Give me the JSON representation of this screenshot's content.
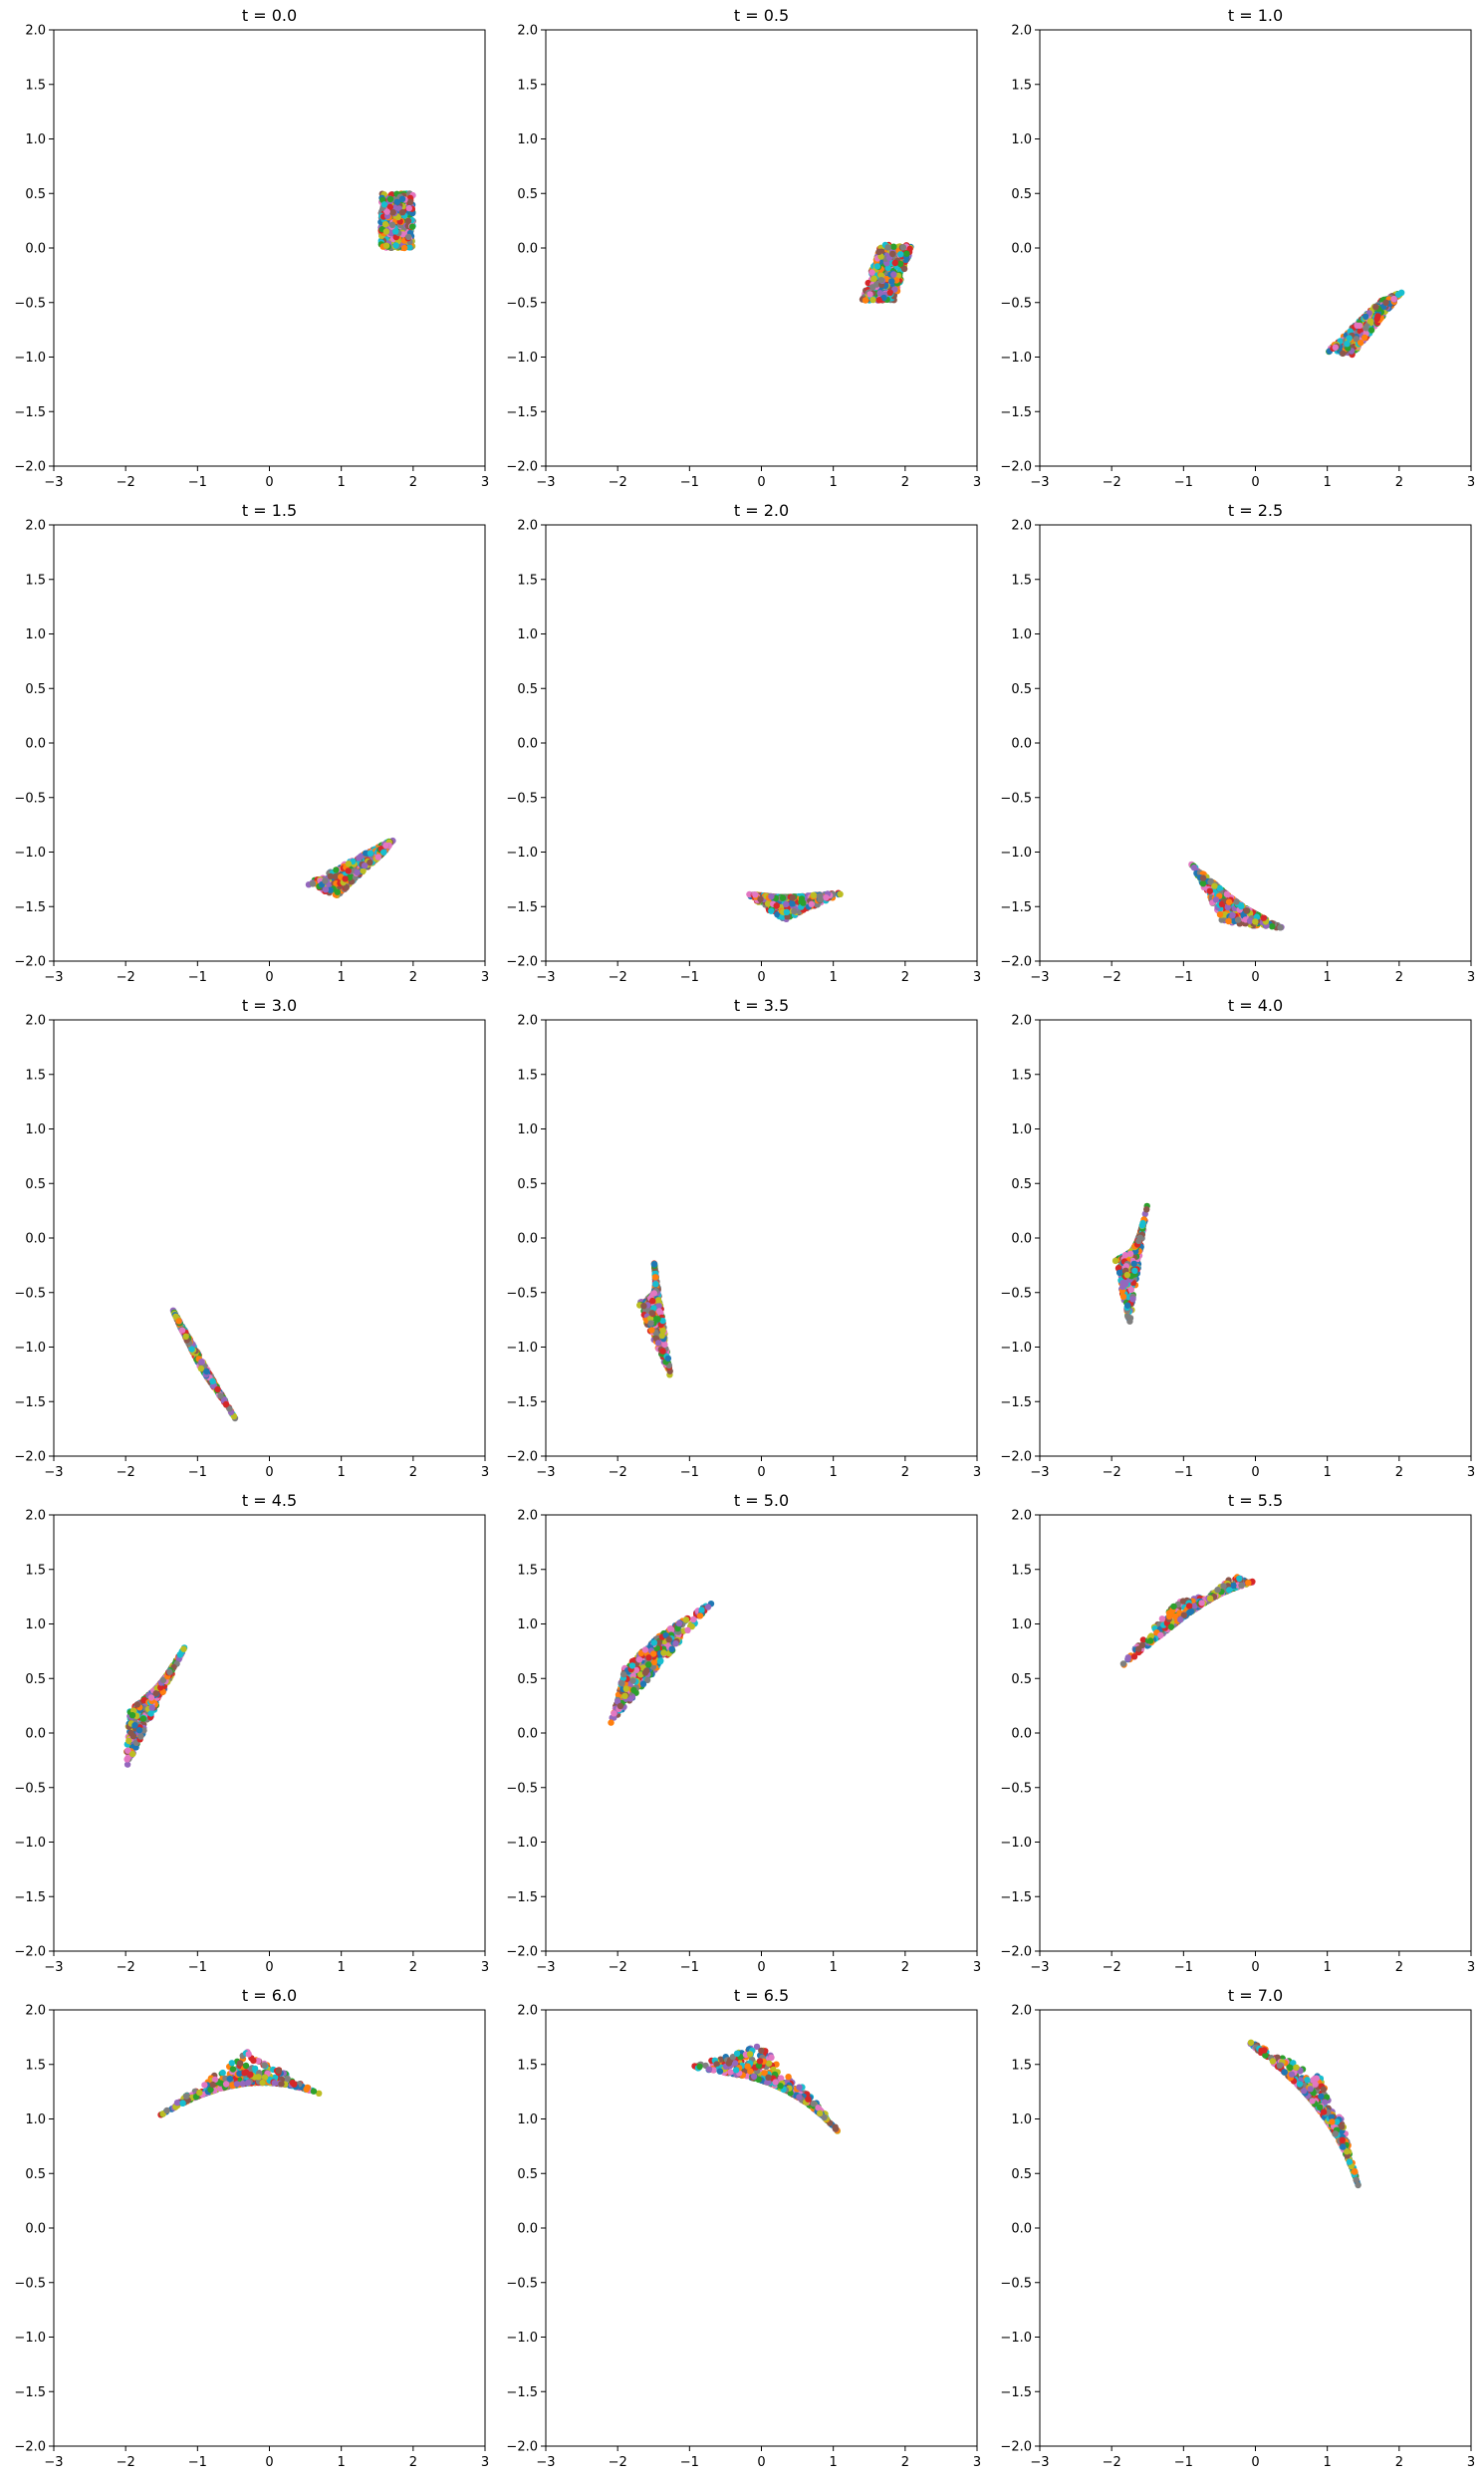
{
  "chart_data": {
    "type": "scatter",
    "layout": {
      "rows": 5,
      "cols": 3
    },
    "xlim": [
      -3,
      3
    ],
    "ylim": [
      -2,
      2
    ],
    "xticks": [
      -3,
      -2,
      -1,
      0,
      1,
      2,
      3
    ],
    "yticks": [
      -2.0,
      -1.5,
      -1.0,
      -0.5,
      0.0,
      0.5,
      1.0,
      1.5,
      2.0
    ],
    "xtick_labels": [
      "−3",
      "−2",
      "−1",
      "0",
      "1",
      "2",
      "3"
    ],
    "ytick_labels": [
      "−2.0",
      "−1.5",
      "−1.0",
      "−0.5",
      "0.0",
      "0.5",
      "1.0",
      "1.5",
      "2.0"
    ],
    "point_colors": [
      "#1f77b4",
      "#ff7f0e",
      "#2ca02c",
      "#d62728",
      "#9467bd",
      "#8c564b",
      "#e377c2",
      "#7f7f7f",
      "#bcbd22",
      "#17becf"
    ],
    "grid": false,
    "panels": [
      {
        "title": "t = 0.0",
        "cluster": [
          [
            1.55,
            0.0
          ],
          [
            2.0,
            0.0
          ],
          [
            2.0,
            0.5
          ],
          [
            1.55,
            0.5
          ]
        ]
      },
      {
        "title": "t = 0.5",
        "cluster": [
          [
            1.4,
            -0.48
          ],
          [
            1.85,
            -0.48
          ],
          [
            2.1,
            0.03
          ],
          [
            1.65,
            0.03
          ]
        ]
      },
      {
        "title": "t = 1.0",
        "cluster": [
          [
            1.0,
            -0.95
          ],
          [
            1.35,
            -0.98
          ],
          [
            2.05,
            -0.4
          ],
          [
            1.75,
            -0.48
          ]
        ]
      },
      {
        "title": "t = 1.5",
        "cluster": [
          [
            0.5,
            -1.3
          ],
          [
            0.95,
            -1.4
          ],
          [
            1.6,
            -1.0
          ],
          [
            1.75,
            -0.87
          ]
        ]
      },
      {
        "title": "t = 2.0",
        "cluster": [
          [
            -0.2,
            -1.38
          ],
          [
            0.3,
            -1.63
          ],
          [
            1.15,
            -1.37
          ],
          [
            0.3,
            -1.42
          ]
        ]
      },
      {
        "title": "t = 2.5",
        "cluster": [
          [
            -0.9,
            -1.1
          ],
          [
            -0.45,
            -1.65
          ],
          [
            0.4,
            -1.7
          ],
          [
            -0.2,
            -1.5
          ]
        ]
      },
      {
        "title": "t = 3.0",
        "cluster": [
          [
            -1.35,
            -0.65
          ],
          [
            -0.45,
            -1.68
          ],
          [
            -0.95,
            -1.2
          ],
          [
            -1.25,
            -0.8
          ]
        ]
      },
      {
        "title": "t = 3.5",
        "cluster": [
          [
            -1.5,
            -0.18
          ],
          [
            -1.25,
            -1.3
          ],
          [
            -1.72,
            -0.6
          ],
          [
            -1.45,
            -0.5
          ]
        ]
      },
      {
        "title": "t = 4.0",
        "cluster": [
          [
            -1.5,
            0.32
          ],
          [
            -1.75,
            -0.82
          ],
          [
            -1.95,
            -0.2
          ],
          [
            -1.65,
            -0.1
          ]
        ]
      },
      {
        "title": "t = 4.5",
        "cluster": [
          [
            -2.0,
            -0.33
          ],
          [
            -1.15,
            0.82
          ],
          [
            -1.5,
            0.45
          ],
          [
            -1.95,
            0.2
          ]
        ]
      },
      {
        "title": "t = 5.0",
        "cluster": [
          [
            -2.1,
            0.08
          ],
          [
            -0.65,
            1.22
          ],
          [
            -1.4,
            0.9
          ],
          [
            -1.9,
            0.6
          ]
        ]
      },
      {
        "title": "t = 5.5",
        "cluster": [
          [
            -2.0,
            0.53
          ],
          [
            -0.3,
            1.44
          ],
          [
            0.0,
            1.38
          ],
          [
            -1.1,
            1.2
          ]
        ]
      },
      {
        "title": "t = 6.0",
        "cluster": [
          [
            -1.6,
            1.0
          ],
          [
            -0.3,
            1.62
          ],
          [
            0.7,
            1.23
          ],
          [
            -0.4,
            1.45
          ]
        ]
      },
      {
        "title": "t = 6.5",
        "cluster": [
          [
            -1.0,
            1.48
          ],
          [
            0.0,
            1.68
          ],
          [
            1.15,
            0.82
          ],
          [
            0.6,
            1.3
          ]
        ]
      },
      {
        "title": "t = 7.0",
        "cluster": [
          [
            -0.15,
            1.73
          ],
          [
            0.9,
            1.4
          ],
          [
            1.45,
            0.35
          ],
          [
            1.2,
            1.0
          ]
        ]
      }
    ]
  }
}
